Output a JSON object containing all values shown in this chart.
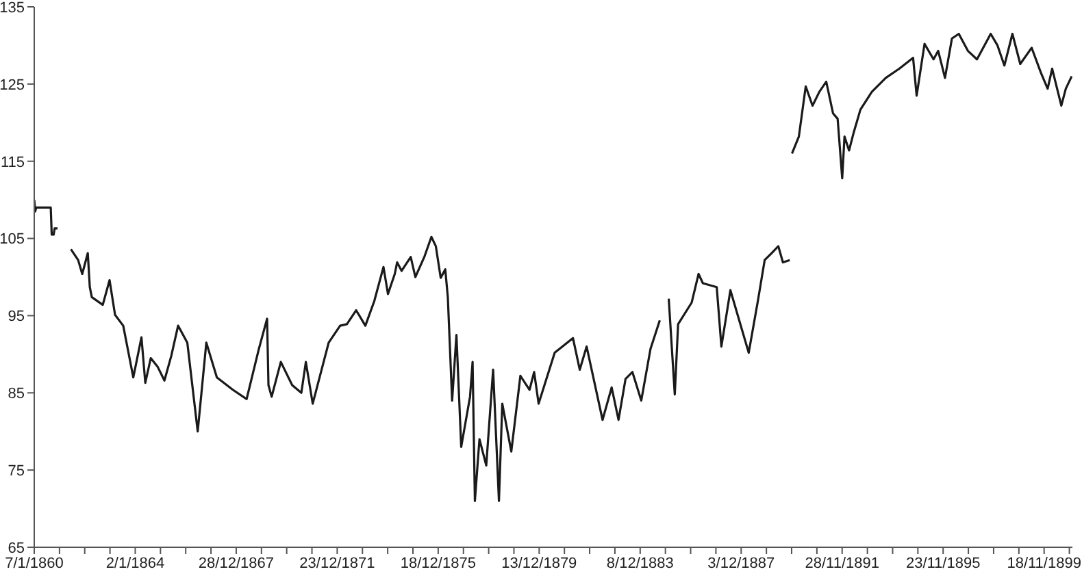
{
  "chart_data": {
    "type": "line",
    "x": [
      "1860-01-07",
      "1860-01-21",
      "1860-02-04",
      "1860-09-01",
      "1860-09-15",
      "1860-10-13",
      "1860-10-27",
      "1860-12-08",
      "1861-03-01",
      "1861-06-19",
      "1861-10-01",
      "1861-11-29",
      "1862-02-17",
      "1862-03-18",
      "1862-04-16",
      "1862-09-21",
      "1862-12-28",
      "1863-03-17",
      "1863-07-13",
      "1863-12-05",
      "1864-04-01",
      "1864-05-26",
      "1864-08-13",
      "1864-11-19",
      "1865-02-26",
      "1865-06-05",
      "1865-09-11",
      "1866-01-22",
      "1866-06-21",
      "1866-10-23",
      "1867-03-24",
      "1867-11-09",
      "1868-05-26",
      "1868-11-19",
      "1869-03-17",
      "1869-04-06",
      "1869-05-22",
      "1869-10-01",
      "1870-03-14",
      "1870-07-24",
      "1870-09-27",
      "1871-01-04",
      "1871-04-13",
      "1871-08-22",
      "1872-02-03",
      "1872-05-11",
      "1872-09-21",
      "1873-02-01",
      "1873-06-10",
      "1873-10-20",
      "1873-12-24",
      "1874-04-01",
      "1874-05-05",
      "1874-07-09",
      "1874-11-17",
      "1875-01-23",
      "1875-06-05",
      "1875-09-11",
      "1875-11-14",
      "1876-01-23",
      "1876-03-29",
      "1876-05-05",
      "1876-07-06",
      "1876-09-06",
      "1876-11-14",
      "1877-03-21",
      "1877-04-27",
      "1877-05-30",
      "1877-08-04",
      "1877-11-10",
      "1878-02-17",
      "1878-05-12",
      "1878-06-29",
      "1878-11-06",
      "1879-03-17",
      "1879-07-27",
      "1879-10-01",
      "1879-12-05",
      "1880-07-24",
      "1881-04-13",
      "1881-07-20",
      "1881-10-27",
      "1882-06-14",
      "1882-10-23",
      "1883-01-30",
      "1883-05-11",
      "1883-08-18",
      "1883-12-24",
      "1884-05-05",
      "1884-09-16",
      "1884-11-15",
      "1885-01-23",
      "1885-04-20",
      "1885-06-07",
      "1885-12-20",
      "1886-03-29",
      "1886-05-30",
      "1886-12-16",
      "1887-02-21",
      "1887-07-01",
      "1888-03-21",
      "1888-07-31",
      "1888-11-06",
      "1889-02-14",
      "1889-05-22",
      "1889-07-27",
      "1889-11-03",
      "1889-11-20",
      "1889-12-05",
      "1890-03-14",
      "1890-06-21",
      "1890-09-27",
      "1891-01-04",
      "1891-04-13",
      "1891-07-20",
      "1891-09-24",
      "1891-11-29",
      "1892-01-01",
      "1892-03-07",
      "1892-05-12",
      "1892-08-18",
      "1893-01-30",
      "1893-08-18",
      "1894-03-03",
      "1894-09-16",
      "1894-11-06",
      "1895-02-28",
      "1895-07-08",
      "1895-09-13",
      "1895-12-20",
      "1896-03-29",
      "1896-07-06",
      "1896-11-14",
      "1897-03-25",
      "1897-10-09",
      "1898-01-15",
      "1898-04-24",
      "1898-08-18",
      "1898-12-09",
      "1899-05-22",
      "1899-10-01",
      "1900-01-08",
      "1900-03-14",
      "1900-07-24",
      "1900-09-27",
      "1900-12-20"
    ],
    "series": [
      {
        "color": "#1a1a1a",
        "values": [
          110,
          108.5,
          109,
          109,
          105.5,
          105.5,
          106.3,
          106.3,
          null,
          103.6,
          102.2,
          100.4,
          103.1,
          98.7,
          97.4,
          96.4,
          99.6,
          95.1,
          93.7,
          87,
          92.2,
          86.3,
          89.5,
          88.4,
          86.6,
          89.8,
          93.7,
          91.5,
          80,
          91.5,
          87,
          85.4,
          84.2,
          90.7,
          94.6,
          86,
          84.5,
          89,
          86,
          85,
          89,
          83.6,
          87,
          91.5,
          93.7,
          93.9,
          95.7,
          93.7,
          96.9,
          101.3,
          97.8,
          100.4,
          101.9,
          100.8,
          102.6,
          100,
          102.7,
          105.2,
          104,
          99.9,
          101,
          97.4,
          84,
          92.5,
          78,
          84.5,
          89,
          71,
          79,
          75.6,
          88,
          71,
          83.6,
          77.4,
          87.2,
          85.4,
          87.7,
          83.6,
          90.2,
          92.1,
          88,
          91,
          81.5,
          85.7,
          81.5,
          86.8,
          87.7,
          84,
          90.7,
          94.4,
          null,
          97.2,
          84.8,
          93.9,
          96.7,
          100.4,
          99.2,
          98.7,
          91,
          98.3,
          90.2,
          96.9,
          102.2,
          103.1,
          104,
          101.9,
          102.2,
          null,
          116,
          118.2,
          124.7,
          122.2,
          124,
          125.3,
          121.2,
          120.5,
          112.8,
          118.2,
          116.4,
          118.7,
          121.7,
          124,
          125.8,
          127,
          128.4,
          123.5,
          130.2,
          128.2,
          129.3,
          125.8,
          130.9,
          131.5,
          129.3,
          128.2,
          131.5,
          130,
          127.4,
          131.5,
          127.6,
          129.7,
          126.5,
          124.4,
          127,
          122.2,
          124.4,
          126
        ]
      }
    ],
    "xlim": [
      "1860-01-07",
      "1900-12-31"
    ],
    "xticks": [
      {
        "value": "1860-01-07",
        "label": "7/1/1860"
      },
      {
        "value": "1861-01-05",
        "label": null
      },
      {
        "value": "1862-01-04",
        "label": null
      },
      {
        "value": "1863-01-03",
        "label": null
      },
      {
        "value": "1864-01-02",
        "label": "2/1/1864"
      },
      {
        "value": "1864-12-31",
        "label": null
      },
      {
        "value": "1865-12-30",
        "label": null
      },
      {
        "value": "1866-12-29",
        "label": null
      },
      {
        "value": "1867-12-28",
        "label": "28/12/1867"
      },
      {
        "value": "1868-12-26",
        "label": null
      },
      {
        "value": "1869-12-25",
        "label": null
      },
      {
        "value": "1870-12-24",
        "label": null
      },
      {
        "value": "1871-12-23",
        "label": "23/12/1871"
      },
      {
        "value": "1872-12-21",
        "label": null
      },
      {
        "value": "1873-12-20",
        "label": null
      },
      {
        "value": "1874-12-19",
        "label": null
      },
      {
        "value": "1875-12-18",
        "label": "18/12/1875"
      },
      {
        "value": "1876-12-16",
        "label": null
      },
      {
        "value": "1877-12-15",
        "label": null
      },
      {
        "value": "1878-12-14",
        "label": null
      },
      {
        "value": "1879-12-13",
        "label": "13/12/1879"
      },
      {
        "value": "1880-12-11",
        "label": null
      },
      {
        "value": "1881-12-10",
        "label": null
      },
      {
        "value": "1882-12-09",
        "label": null
      },
      {
        "value": "1883-12-08",
        "label": "8/12/1883"
      },
      {
        "value": "1884-12-06",
        "label": null
      },
      {
        "value": "1885-12-05",
        "label": null
      },
      {
        "value": "1886-12-04",
        "label": null
      },
      {
        "value": "1887-12-03",
        "label": "3/12/1887"
      },
      {
        "value": "1888-12-01",
        "label": null
      },
      {
        "value": "1889-11-30",
        "label": null
      },
      {
        "value": "1890-11-29",
        "label": null
      },
      {
        "value": "1891-11-28",
        "label": "28/11/1891"
      },
      {
        "value": "1892-11-26",
        "label": null
      },
      {
        "value": "1893-11-25",
        "label": null
      },
      {
        "value": "1894-11-24",
        "label": null
      },
      {
        "value": "1895-11-23",
        "label": "23/11/1895"
      },
      {
        "value": "1896-11-21",
        "label": null
      },
      {
        "value": "1897-11-20",
        "label": null
      },
      {
        "value": "1898-11-19",
        "label": null
      },
      {
        "value": "1899-11-18",
        "label": "18/11/1899"
      },
      {
        "value": "1900-11-17",
        "label": null
      }
    ],
    "ylim": [
      65,
      135
    ],
    "yticks": [
      65,
      75,
      85,
      95,
      105,
      115,
      125,
      135
    ],
    "grid": false,
    "marker": "none",
    "line_style": "solid"
  }
}
